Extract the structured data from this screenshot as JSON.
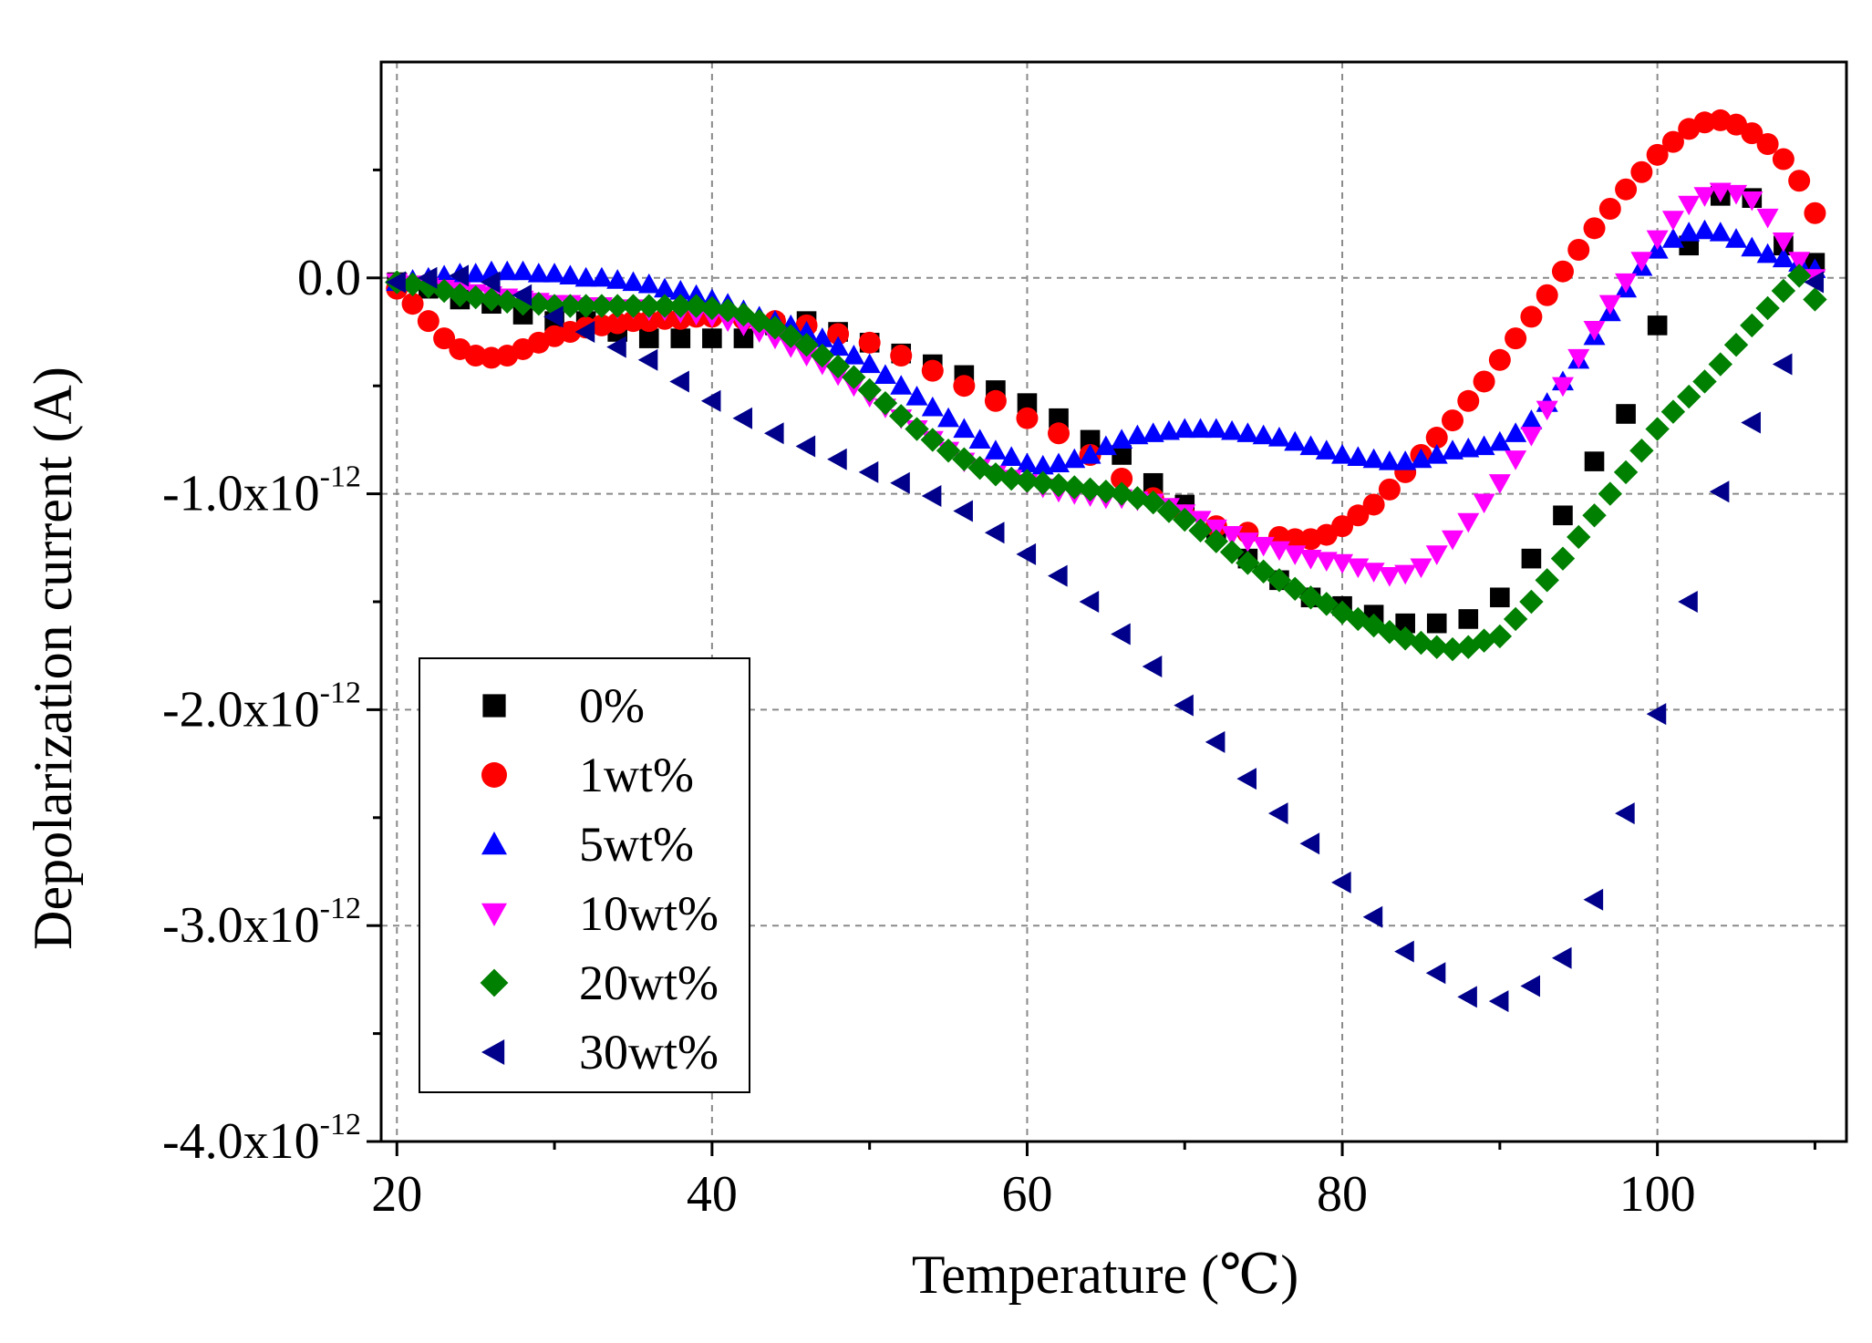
{
  "chart_data": {
    "type": "scatter",
    "title": "",
    "xlabel": "Temperature (℃)",
    "ylabel": "Depolarization current (A)",
    "xlim": [
      19,
      112
    ],
    "ylim": [
      -4.0,
      1.0
    ],
    "grid": true,
    "legend_position": "bottom-left",
    "x_ticks": [
      20,
      40,
      60,
      80,
      100
    ],
    "x_tick_labels": [
      "20",
      "40",
      "60",
      "80",
      "100"
    ],
    "y_ticks": [
      0,
      -1,
      -2,
      -3,
      -4
    ],
    "y_tick_labels": [
      {
        "base": "0.0",
        "exp": ""
      },
      {
        "base": "-1.0x10",
        "exp": "-12"
      },
      {
        "base": "-2.0x10",
        "exp": "-12"
      },
      {
        "base": "-3.0x10",
        "exp": "-12"
      },
      {
        "base": "-4.0x10",
        "exp": "-12"
      }
    ],
    "y_unit_multiplier": "1e-12 A",
    "series": [
      {
        "name": "0%",
        "marker": "square",
        "color": "#000000",
        "x": [
          20,
          22,
          24,
          26,
          28,
          30,
          32,
          34,
          36,
          38,
          40,
          42,
          44,
          46,
          48,
          50,
          52,
          54,
          56,
          58,
          60,
          62,
          64,
          66,
          68,
          70,
          72,
          74,
          76,
          78,
          80,
          82,
          84,
          86,
          88,
          90,
          92,
          94,
          96,
          98,
          100,
          102,
          104,
          106,
          108,
          110
        ],
        "y": [
          -0.02,
          -0.05,
          -0.1,
          -0.12,
          -0.17,
          -0.2,
          -0.2,
          -0.25,
          -0.28,
          -0.28,
          -0.28,
          -0.28,
          -0.22,
          -0.2,
          -0.25,
          -0.3,
          -0.35,
          -0.4,
          -0.45,
          -0.52,
          -0.58,
          -0.65,
          -0.75,
          -0.82,
          -0.95,
          -1.05,
          -1.18,
          -1.3,
          -1.4,
          -1.48,
          -1.52,
          -1.56,
          -1.6,
          -1.6,
          -1.58,
          -1.48,
          -1.3,
          -1.1,
          -0.85,
          -0.63,
          -0.22,
          0.15,
          0.38,
          0.37,
          0.15,
          0.07
        ]
      },
      {
        "name": "1wt%",
        "marker": "circle",
        "color": "#ff0000",
        "x": [
          20,
          21,
          22,
          23,
          24,
          25,
          26,
          27,
          28,
          29,
          30,
          31,
          32,
          33,
          34,
          35,
          36,
          37,
          38,
          39,
          40,
          42,
          44,
          46,
          48,
          50,
          52,
          54,
          56,
          58,
          60,
          62,
          64,
          66,
          68,
          70,
          72,
          74,
          76,
          77,
          78,
          79,
          80,
          81,
          82,
          83,
          84,
          85,
          86,
          87,
          88,
          89,
          90,
          91,
          92,
          93,
          94,
          95,
          96,
          97,
          98,
          99,
          100,
          101,
          102,
          103,
          104,
          105,
          106,
          107,
          108,
          109,
          110
        ],
        "y": [
          -0.05,
          -0.12,
          -0.2,
          -0.28,
          -0.33,
          -0.36,
          -0.37,
          -0.36,
          -0.33,
          -0.3,
          -0.27,
          -0.25,
          -0.23,
          -0.22,
          -0.21,
          -0.2,
          -0.2,
          -0.19,
          -0.19,
          -0.18,
          -0.18,
          -0.19,
          -0.2,
          -0.22,
          -0.26,
          -0.3,
          -0.36,
          -0.43,
          -0.5,
          -0.57,
          -0.65,
          -0.72,
          -0.82,
          -0.93,
          -1.02,
          -1.1,
          -1.15,
          -1.18,
          -1.2,
          -1.21,
          -1.21,
          -1.19,
          -1.15,
          -1.1,
          -1.05,
          -0.98,
          -0.9,
          -0.82,
          -0.74,
          -0.66,
          -0.57,
          -0.48,
          -0.38,
          -0.28,
          -0.18,
          -0.08,
          0.03,
          0.13,
          0.23,
          0.32,
          0.41,
          0.49,
          0.57,
          0.63,
          0.69,
          0.72,
          0.73,
          0.71,
          0.67,
          0.62,
          0.55,
          0.45,
          0.3
        ]
      },
      {
        "name": "5wt%",
        "marker": "triangle-up",
        "color": "#0000ff",
        "x": [
          20,
          21,
          22,
          23,
          24,
          25,
          26,
          27,
          28,
          29,
          30,
          31,
          32,
          33,
          34,
          35,
          36,
          37,
          38,
          39,
          40,
          41,
          42,
          43,
          44,
          45,
          46,
          47,
          48,
          49,
          50,
          51,
          52,
          53,
          54,
          55,
          56,
          57,
          58,
          59,
          60,
          61,
          62,
          63,
          64,
          65,
          66,
          67,
          68,
          69,
          70,
          71,
          72,
          73,
          74,
          75,
          76,
          77,
          78,
          79,
          80,
          81,
          82,
          83,
          84,
          85,
          86,
          87,
          88,
          89,
          90,
          91,
          92,
          93,
          94,
          95,
          96,
          97,
          98,
          99,
          100,
          101,
          102,
          103,
          104,
          105,
          106,
          107,
          108,
          109,
          110
        ],
        "y": [
          -0.02,
          -0.01,
          0.0,
          0.01,
          0.02,
          0.02,
          0.03,
          0.03,
          0.03,
          0.02,
          0.02,
          0.01,
          0.0,
          0.0,
          -0.01,
          -0.02,
          -0.03,
          -0.05,
          -0.06,
          -0.08,
          -0.1,
          -0.12,
          -0.15,
          -0.18,
          -0.2,
          -0.22,
          -0.25,
          -0.28,
          -0.32,
          -0.36,
          -0.4,
          -0.45,
          -0.5,
          -0.55,
          -0.6,
          -0.65,
          -0.7,
          -0.75,
          -0.8,
          -0.83,
          -0.86,
          -0.87,
          -0.86,
          -0.84,
          -0.82,
          -0.78,
          -0.75,
          -0.73,
          -0.72,
          -0.71,
          -0.7,
          -0.7,
          -0.7,
          -0.71,
          -0.72,
          -0.73,
          -0.74,
          -0.76,
          -0.78,
          -0.8,
          -0.82,
          -0.83,
          -0.84,
          -0.85,
          -0.85,
          -0.84,
          -0.82,
          -0.8,
          -0.79,
          -0.78,
          -0.76,
          -0.72,
          -0.66,
          -0.58,
          -0.48,
          -0.38,
          -0.27,
          -0.16,
          -0.05,
          0.05,
          0.13,
          0.18,
          0.21,
          0.22,
          0.21,
          0.18,
          0.14,
          0.11,
          0.09,
          0.07,
          0.04
        ]
      },
      {
        "name": "10wt%",
        "marker": "triangle-down",
        "color": "#ff00ff",
        "x": [
          20,
          21,
          22,
          23,
          24,
          25,
          26,
          27,
          28,
          29,
          30,
          31,
          32,
          33,
          34,
          35,
          36,
          37,
          38,
          39,
          40,
          41,
          42,
          43,
          44,
          45,
          46,
          47,
          48,
          49,
          50,
          51,
          52,
          53,
          54,
          55,
          56,
          57,
          58,
          59,
          60,
          61,
          62,
          63,
          64,
          65,
          66,
          67,
          68,
          69,
          70,
          71,
          72,
          73,
          74,
          75,
          76,
          77,
          78,
          79,
          80,
          81,
          82,
          83,
          84,
          85,
          86,
          87,
          88,
          89,
          90,
          91,
          92,
          93,
          94,
          95,
          96,
          97,
          98,
          99,
          100,
          101,
          102,
          103,
          104,
          105,
          106,
          107,
          108,
          109,
          110
        ],
        "y": [
          -0.02,
          -0.03,
          -0.04,
          -0.05,
          -0.06,
          -0.07,
          -0.08,
          -0.09,
          -0.1,
          -0.11,
          -0.12,
          -0.12,
          -0.13,
          -0.13,
          -0.14,
          -0.14,
          -0.15,
          -0.15,
          -0.16,
          -0.17,
          -0.18,
          -0.2,
          -0.22,
          -0.25,
          -0.28,
          -0.32,
          -0.36,
          -0.4,
          -0.45,
          -0.5,
          -0.55,
          -0.6,
          -0.65,
          -0.7,
          -0.75,
          -0.8,
          -0.85,
          -0.88,
          -0.91,
          -0.93,
          -0.95,
          -0.97,
          -0.99,
          -1.0,
          -1.01,
          -1.02,
          -1.02,
          -1.03,
          -1.04,
          -1.06,
          -1.09,
          -1.12,
          -1.16,
          -1.19,
          -1.22,
          -1.24,
          -1.26,
          -1.28,
          -1.3,
          -1.31,
          -1.32,
          -1.34,
          -1.36,
          -1.38,
          -1.37,
          -1.34,
          -1.28,
          -1.21,
          -1.13,
          -1.04,
          -0.95,
          -0.84,
          -0.73,
          -0.61,
          -0.5,
          -0.37,
          -0.24,
          -0.12,
          -0.02,
          0.08,
          0.18,
          0.27,
          0.34,
          0.38,
          0.4,
          0.39,
          0.36,
          0.28,
          0.17,
          0.08,
          0.0
        ]
      },
      {
        "name": "20wt%",
        "marker": "diamond",
        "color": "#008000",
        "x": [
          20,
          21,
          22,
          23,
          24,
          25,
          26,
          27,
          28,
          29,
          30,
          31,
          32,
          33,
          34,
          35,
          36,
          37,
          38,
          39,
          40,
          41,
          42,
          43,
          44,
          45,
          46,
          47,
          48,
          49,
          50,
          51,
          52,
          53,
          54,
          55,
          56,
          57,
          58,
          59,
          60,
          61,
          62,
          63,
          64,
          65,
          66,
          67,
          68,
          69,
          70,
          71,
          72,
          73,
          74,
          75,
          76,
          77,
          78,
          79,
          80,
          81,
          82,
          83,
          84,
          85,
          86,
          87,
          88,
          89,
          90,
          91,
          92,
          93,
          94,
          95,
          96,
          97,
          98,
          99,
          100,
          101,
          102,
          103,
          104,
          105,
          106,
          107,
          108,
          109,
          110
        ],
        "y": [
          -0.02,
          -0.03,
          -0.04,
          -0.06,
          -0.08,
          -0.09,
          -0.1,
          -0.11,
          -0.12,
          -0.12,
          -0.13,
          -0.13,
          -0.13,
          -0.13,
          -0.13,
          -0.13,
          -0.13,
          -0.13,
          -0.13,
          -0.13,
          -0.14,
          -0.15,
          -0.17,
          -0.2,
          -0.23,
          -0.27,
          -0.31,
          -0.36,
          -0.41,
          -0.46,
          -0.52,
          -0.58,
          -0.64,
          -0.7,
          -0.75,
          -0.8,
          -0.84,
          -0.88,
          -0.91,
          -0.93,
          -0.94,
          -0.95,
          -0.96,
          -0.97,
          -0.98,
          -0.99,
          -1.0,
          -1.02,
          -1.04,
          -1.08,
          -1.12,
          -1.17,
          -1.22,
          -1.27,
          -1.32,
          -1.36,
          -1.4,
          -1.44,
          -1.48,
          -1.51,
          -1.55,
          -1.58,
          -1.61,
          -1.64,
          -1.67,
          -1.69,
          -1.71,
          -1.72,
          -1.71,
          -1.68,
          -1.66,
          -1.58,
          -1.5,
          -1.4,
          -1.3,
          -1.2,
          -1.1,
          -1.0,
          -0.9,
          -0.8,
          -0.7,
          -0.62,
          -0.55,
          -0.48,
          -0.4,
          -0.31,
          -0.22,
          -0.14,
          -0.06,
          0.01,
          -0.1
        ]
      },
      {
        "name": "30wt%",
        "marker": "triangle-left",
        "color": "#00008b",
        "x": [
          20,
          22,
          24,
          26,
          28,
          30,
          32,
          34,
          36,
          38,
          40,
          42,
          44,
          46,
          48,
          50,
          52,
          54,
          56,
          58,
          60,
          62,
          64,
          66,
          68,
          70,
          72,
          74,
          76,
          78,
          80,
          82,
          84,
          86,
          88,
          90,
          92,
          94,
          96,
          98,
          100,
          102,
          104,
          106,
          108,
          110
        ],
        "y": [
          -0.02,
          0.0,
          0.01,
          -0.02,
          -0.08,
          -0.18,
          -0.25,
          -0.32,
          -0.38,
          -0.48,
          -0.57,
          -0.65,
          -0.72,
          -0.78,
          -0.84,
          -0.9,
          -0.95,
          -1.01,
          -1.08,
          -1.18,
          -1.28,
          -1.38,
          -1.5,
          -1.65,
          -1.8,
          -1.98,
          -2.15,
          -2.32,
          -2.48,
          -2.62,
          -2.8,
          -2.96,
          -3.12,
          -3.22,
          -3.33,
          -3.35,
          -3.28,
          -3.15,
          -2.88,
          -2.48,
          -2.02,
          -1.5,
          -0.99,
          -0.67,
          -0.4,
          -0.02
        ]
      }
    ]
  }
}
